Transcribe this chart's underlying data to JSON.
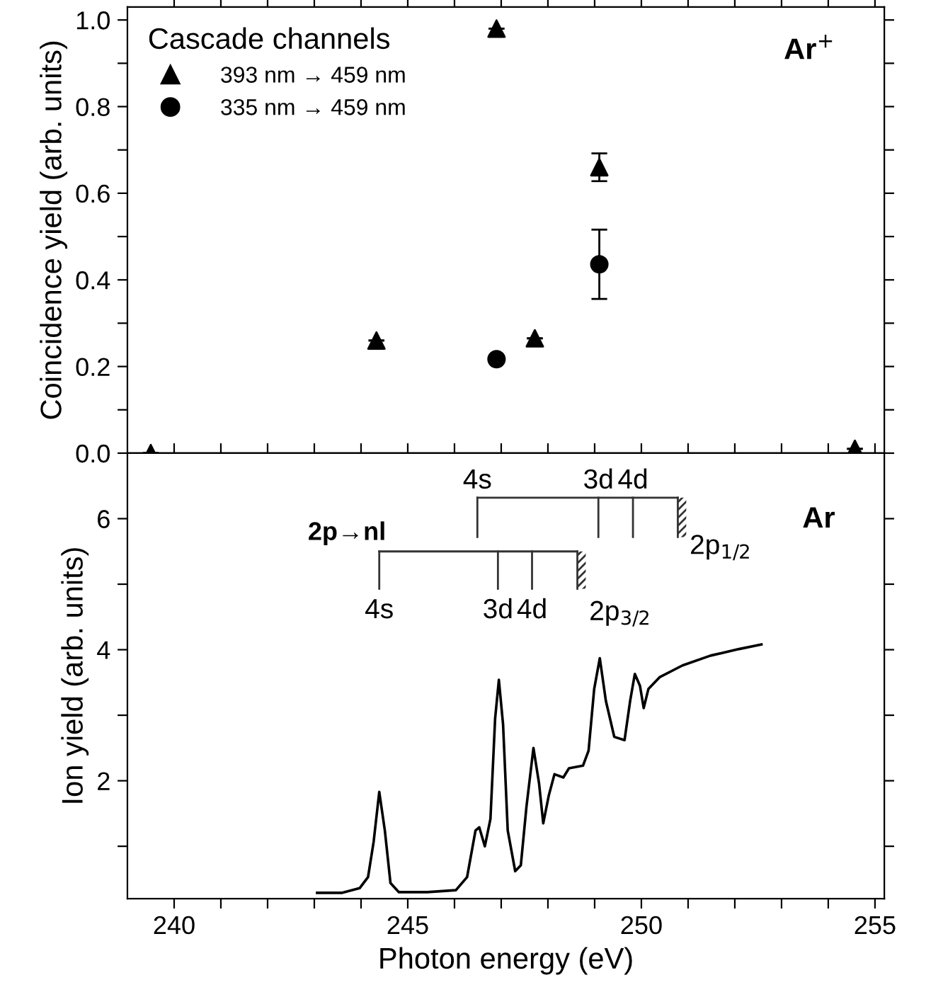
{
  "chart_data": [
    {
      "type": "scatter",
      "ylabel": "Coincidence yield (arb. units)",
      "legend_title": "Cascade channels",
      "legend": "top left",
      "tick_labels": "y",
      "xlim": [
        239,
        255.2
      ],
      "xticks": [
        {
          "value": 240,
          "label": null
        },
        {
          "value": 241,
          "label": null
        },
        {
          "value": 242,
          "label": null
        },
        {
          "value": 243,
          "label": null
        },
        {
          "value": 244,
          "label": null
        },
        {
          "value": 245,
          "label": null
        },
        {
          "value": 246,
          "label": null
        },
        {
          "value": 247,
          "label": null
        },
        {
          "value": 248,
          "label": null
        },
        {
          "value": 249,
          "label": null
        },
        {
          "value": 250,
          "label": null
        },
        {
          "value": 251,
          "label": null
        },
        {
          "value": 252,
          "label": null
        },
        {
          "value": 253,
          "label": null
        },
        {
          "value": 254,
          "label": null
        },
        {
          "value": 255,
          "label": null
        }
      ],
      "ylim": [
        0,
        1.03
      ],
      "yticks": [
        "0.0",
        {
          "value": 0.1,
          "label": null
        },
        {
          "value": 0.2,
          "label": "0.2"
        },
        {
          "value": 0.3,
          "label": null
        },
        {
          "value": 0.4,
          "label": "0.4"
        },
        {
          "value": 0.5,
          "label": null
        },
        {
          "value": 0.6,
          "label": "0.6"
        },
        {
          "value": 0.7,
          "label": null
        },
        {
          "value": 0.8,
          "label": "0.8"
        },
        {
          "value": 0.9,
          "label": null
        },
        {
          "value": 1.0,
          "label": "1.0"
        }
      ],
      "annotations": [
        "Ar$^{+}$"
      ],
      "series": [
        {
          "name": "393 nm → 459 nm",
          "color": "#000000",
          "marker": "triangle",
          "x": [
            239.5,
            244.33,
            246.9,
            247.72,
            249.1,
            254.57
          ],
          "values": [
            0.0,
            0.26,
            0.98,
            0.265,
            0.66,
            0.01
          ],
          "errors": [
            null,
            null,
            null,
            null,
            0.032,
            null
          ]
        },
        {
          "name": "335 nm → 459 nm",
          "color": "#000000",
          "marker": "circle",
          "x": [
            246.9,
            249.1
          ],
          "values": [
            0.217,
            0.436
          ],
          "errors": [
            null,
            0.08
          ]
        }
      ]
    },
    {
      "type": "line",
      "xlabel": "Photon energy (eV)",
      "ylabel": "Ion yield (arb. units)",
      "xlim": [
        239,
        255.2
      ],
      "xticks": [
        240,
        {
          "value": 241,
          "label": null
        },
        {
          "value": 242,
          "label": null
        },
        {
          "value": 243,
          "label": null
        },
        {
          "value": 244,
          "label": null
        },
        245,
        {
          "value": 246,
          "label": null
        },
        {
          "value": 247,
          "label": null
        },
        {
          "value": 248,
          "label": null
        },
        {
          "value": 249,
          "label": null
        },
        250,
        {
          "value": 251,
          "label": null
        },
        {
          "value": 252,
          "label": null
        },
        {
          "value": 253,
          "label": null
        },
        {
          "value": 254,
          "label": null
        },
        255
      ],
      "ylim": [
        0.2,
        7.0
      ],
      "yticks": [
        {
          "value": 1,
          "label": null
        },
        2,
        {
          "value": 3,
          "label": null
        },
        4,
        {
          "value": 5,
          "label": null
        },
        6
      ],
      "annotations": [
        "4s",
        "3d",
        "4d",
        "2p$_{1/2}$",
        "4s",
        "3d",
        "4d",
        "2p$_{3/2}$",
        "2p→nl",
        "Ar"
      ],
      "series": [
        {
          "color": "#000000",
          "x": [
            243.06,
            243.6,
            243.97,
            244.15,
            244.27,
            244.39,
            244.51,
            244.63,
            244.81,
            245.42,
            246.03,
            246.27,
            246.45,
            246.53,
            246.65,
            246.77,
            246.87,
            246.95,
            247.04,
            247.14,
            247.3,
            247.42,
            247.54,
            247.69,
            247.81,
            247.9,
            248.02,
            248.14,
            248.33,
            248.45,
            248.75,
            248.87,
            248.99,
            249.11,
            249.24,
            249.42,
            249.64,
            249.76,
            249.86,
            249.97,
            250.05,
            250.15,
            250.39,
            250.88,
            251.48,
            252.09,
            252.57
          ],
          "values": [
            0.29,
            0.29,
            0.36,
            0.53,
            1.07,
            1.83,
            1.24,
            0.44,
            0.3,
            0.3,
            0.33,
            0.53,
            1.24,
            1.29,
            1.0,
            1.42,
            2.95,
            3.54,
            2.86,
            1.24,
            0.62,
            0.71,
            1.6,
            2.5,
            1.96,
            1.35,
            1.78,
            2.1,
            2.05,
            2.19,
            2.23,
            2.46,
            3.4,
            3.87,
            3.22,
            2.67,
            2.62,
            3.22,
            3.63,
            3.45,
            3.11,
            3.4,
            3.58,
            3.76,
            3.91,
            4.01,
            4.08
          ]
        }
      ]
    }
  ]
}
